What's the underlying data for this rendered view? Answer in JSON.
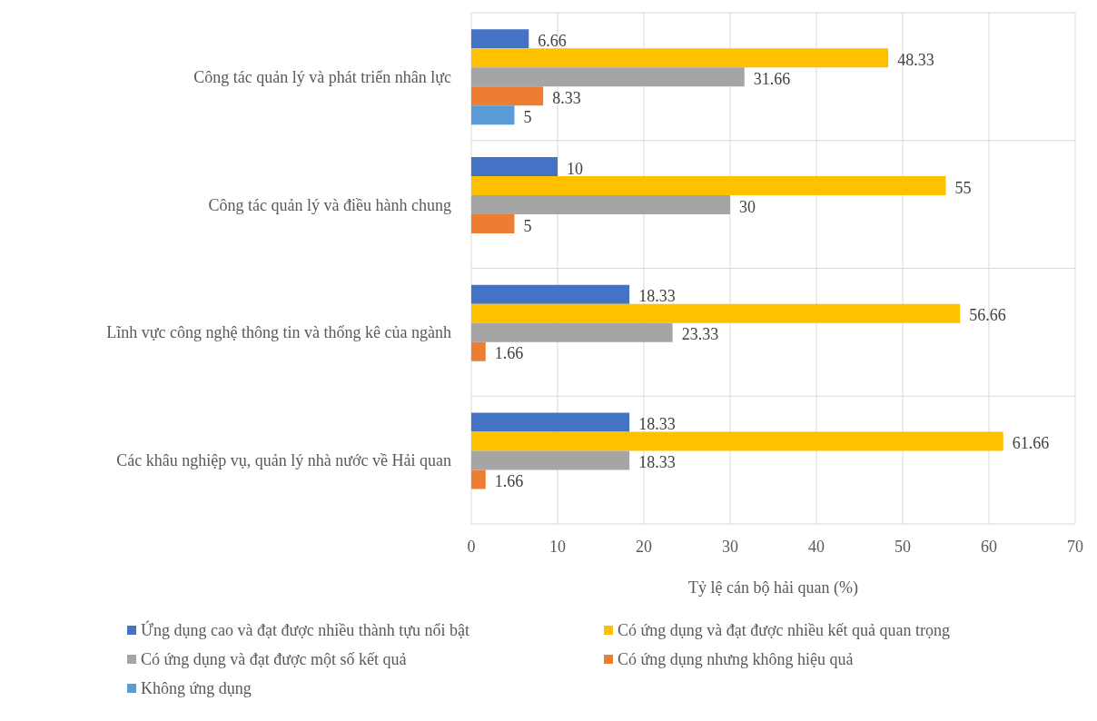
{
  "chart_data": {
    "type": "bar",
    "orientation": "horizontal",
    "categories": [
      "Công tác quản lý và phát triển nhân lực",
      "Công tác quản lý và điều hành chung",
      "Lĩnh vực công nghệ thông tin và thống kê của ngành",
      "Các khâu nghiệp vụ, quản lý nhà nước về Hải quan"
    ],
    "series": [
      {
        "name": "Ứng dụng cao và đạt được nhiều thành tựu nổi bật",
        "color": "#4472c4",
        "values": [
          6.66,
          10,
          18.33,
          18.33
        ]
      },
      {
        "name": "Có ứng dụng và đạt được nhiều kết quả quan trọng",
        "color": "#ffc000",
        "values": [
          48.33,
          55,
          56.66,
          61.66
        ]
      },
      {
        "name": "Có ứng dụng và đạt được một số kết quả",
        "color": "#a5a5a5",
        "values": [
          31.66,
          30,
          23.33,
          18.33
        ]
      },
      {
        "name": "Có ứng dụng nhưng không hiệu quả",
        "color": "#ed7d31",
        "values": [
          8.33,
          5,
          1.66,
          1.66
        ]
      },
      {
        "name": "Không ứng dụng",
        "color": "#5b9bd5",
        "values": [
          5,
          null,
          null,
          null
        ]
      }
    ],
    "xlabel": "Tỷ lệ cán bộ hải quan (%)",
    "xlim": [
      0,
      70
    ],
    "xticks": [
      0,
      10,
      20,
      30,
      40,
      50,
      60,
      70
    ],
    "grid": true,
    "legend": "bottom",
    "data_labels": true
  }
}
